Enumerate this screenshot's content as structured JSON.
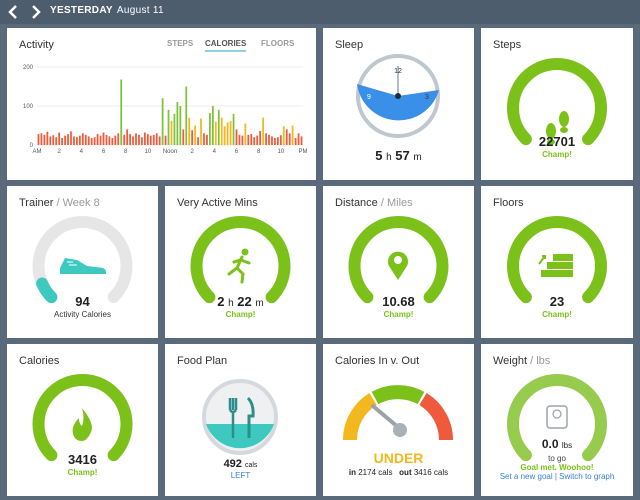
{
  "header": {
    "day": "YESTERDAY",
    "date": "August 11"
  },
  "activity": {
    "title": "Activity",
    "tabs": [
      {
        "label": "STEPS"
      },
      {
        "label": "CALORIES"
      },
      {
        "label": "FLOORS"
      }
    ],
    "active_tab": "CALORIES"
  },
  "chart_data": {
    "type": "bar",
    "title": "Activity",
    "yticks": [
      0,
      100,
      200
    ],
    "ylim": [
      0,
      200
    ],
    "xticks": [
      "AM",
      "2",
      "4",
      "6",
      "8",
      "10",
      "Noon",
      "2",
      "4",
      "6",
      "8",
      "10",
      "PM"
    ],
    "values": [
      28,
      30,
      26,
      34,
      22,
      25,
      20,
      32,
      18,
      24,
      28,
      35,
      22,
      20,
      24,
      30,
      26,
      22,
      18,
      20,
      28,
      24,
      32,
      26,
      22,
      18,
      24,
      30,
      168,
      26,
      40,
      28,
      22,
      30,
      26,
      20,
      32,
      28,
      24,
      26,
      30,
      22,
      120,
      24,
      90,
      62,
      80,
      110,
      100,
      40,
      150,
      70,
      38,
      50,
      20,
      68,
      30,
      26,
      82,
      100,
      60,
      90,
      70,
      48,
      58,
      62,
      80,
      40,
      26,
      24,
      55,
      26,
      28,
      20,
      24,
      36,
      70,
      30,
      26,
      22,
      18,
      20,
      25,
      48,
      40,
      30,
      50,
      18,
      30,
      22
    ],
    "colors": {
      "sedentary": "#f05a3c",
      "light": "#f3b81e",
      "very_active": "#7ec23b"
    }
  },
  "sleep": {
    "title": "Sleep",
    "clock": [
      "12",
      "3",
      "6",
      "9"
    ],
    "hours": "5",
    "h_unit": "h",
    "minutes": "57",
    "m_unit": "m"
  },
  "steps": {
    "title": "Steps",
    "value": "22701",
    "status": "Champ!",
    "progress": 1.0
  },
  "trainer": {
    "title": "Trainer",
    "week": "Week 8",
    "value": "94",
    "label": "Activity Calories",
    "progress": 0.08
  },
  "very_active": {
    "title": "Very Active Mins",
    "hours": "2",
    "h_unit": "h",
    "minutes": "22",
    "m_unit": "m",
    "status": "Champ!",
    "progress": 1.0
  },
  "distance": {
    "title": "Distance",
    "unit": "Miles",
    "value": "10.68",
    "status": "Champ!",
    "progress": 1.0
  },
  "floors": {
    "title": "Floors",
    "value": "23",
    "status": "Champ!",
    "progress": 1.0
  },
  "calories": {
    "title": "Calories",
    "value": "3416",
    "status": "Champ!",
    "progress": 1.0
  },
  "food_plan": {
    "title": "Food Plan",
    "value": "492",
    "unit": "cals",
    "status": "LEFT"
  },
  "cal_in_out": {
    "title": "Calories In v. Out",
    "status": "UNDER",
    "in_label": "in",
    "in_value": "2174",
    "in_unit": "cals",
    "out_label": "out",
    "out_value": "3416",
    "out_unit": "cals"
  },
  "weight": {
    "title": "Weight",
    "unit": "lbs",
    "value": "0.0",
    "value_unit": "lbs",
    "togo": "to go",
    "met": "Goal met. Woohoo!",
    "link1": "Set a new goal",
    "sep": "|",
    "link2": "Switch to graph",
    "progress": 1.0
  },
  "colors": {
    "green": "#7bc11a",
    "blue": "#3a90e8",
    "orange": "#f3b81e",
    "red": "#f05a3c",
    "teal": "#3ec9c0",
    "track": "#e6e6e6"
  }
}
